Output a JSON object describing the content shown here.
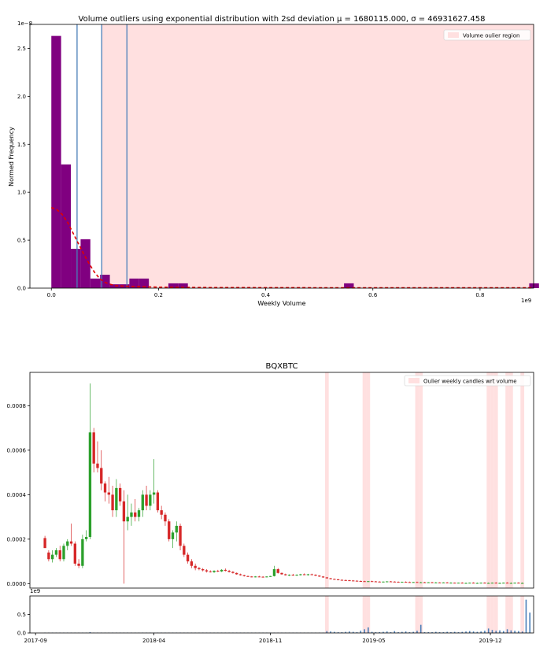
{
  "chart_data": [
    {
      "type": "bar",
      "title": "Volume outliers using exponential distribution with 2sd deviation μ = 1680115.000,  σ = 46931627.458",
      "xlabel": "Weekly Volume",
      "ylabel": "Normed Frequency",
      "x_offset_label": "1e9",
      "y_offset_label": "1e−8",
      "xlim": [
        -0.04,
        0.9
      ],
      "ylim": [
        0,
        2.75
      ],
      "x_ticks": [
        0.0,
        0.2,
        0.4,
        0.6,
        0.8
      ],
      "x_tick_labels": [
        "0.0",
        "0.2",
        "0.4",
        "0.6",
        "0.8"
      ],
      "y_ticks": [
        0.0,
        0.5,
        1.0,
        1.5,
        2.0,
        2.5
      ],
      "y_tick_labels": [
        "0.0",
        "0.5",
        "1.0",
        "1.5",
        "2.0",
        "2.5"
      ],
      "grid": false,
      "legend_position": "top-right",
      "legend_entries": [
        "Volume oulier region"
      ],
      "outlier_region": [
        0.094,
        0.9
      ],
      "vertical_lines": [
        0.048,
        0.094,
        0.141
      ],
      "bin_width": 0.0182,
      "bins": [
        {
          "x": 0.0,
          "value": 2.63
        },
        {
          "x": 0.0182,
          "value": 1.29
        },
        {
          "x": 0.0364,
          "value": 0.41
        },
        {
          "x": 0.0546,
          "value": 0.51
        },
        {
          "x": 0.0728,
          "value": 0.1
        },
        {
          "x": 0.091,
          "value": 0.14
        },
        {
          "x": 0.1092,
          "value": 0.04
        },
        {
          "x": 0.1274,
          "value": 0.04
        },
        {
          "x": 0.1456,
          "value": 0.1
        },
        {
          "x": 0.1638,
          "value": 0.1
        },
        {
          "x": 0.2184,
          "value": 0.05
        },
        {
          "x": 0.2366,
          "value": 0.05
        },
        {
          "x": 0.5462,
          "value": 0.05
        },
        {
          "x": 0.8918,
          "value": 0.05
        }
      ],
      "fit_curve": [
        [
          0.0,
          0.84
        ],
        [
          0.01,
          0.82
        ],
        [
          0.02,
          0.77
        ],
        [
          0.03,
          0.69
        ],
        [
          0.04,
          0.58
        ],
        [
          0.05,
          0.47
        ],
        [
          0.06,
          0.36
        ],
        [
          0.07,
          0.26
        ],
        [
          0.08,
          0.17
        ],
        [
          0.09,
          0.1
        ],
        [
          0.1,
          0.06
        ],
        [
          0.11,
          0.04
        ],
        [
          0.12,
          0.025
        ],
        [
          0.14,
          0.02
        ],
        [
          0.2,
          0.01
        ],
        [
          0.3,
          0.006
        ],
        [
          0.5,
          0.004
        ],
        [
          0.9,
          0.004
        ]
      ]
    },
    {
      "type": "candlestick",
      "title": "BQXBTC",
      "legend_position": "top-right",
      "legend_entries": [
        "Oulier weekly candles wrt volume"
      ],
      "ylim": [
        -2e-05,
        0.00095
      ],
      "y_ticks": [
        0.0,
        0.0002,
        0.0004,
        0.0006,
        0.0008
      ],
      "y_tick_labels": [
        "0.0000",
        "0.0002",
        "0.0004",
        "0.0006",
        "0.0008"
      ],
      "x_tick_labels": [
        "2017-09",
        "2018-04",
        "2018-11",
        "2019-05",
        "2019-12"
      ],
      "x_tick_index": [
        -2.5,
        29,
        60,
        87.5,
        118.5
      ],
      "volume_ylim": [
        0,
        1.0
      ],
      "volume_y_ticks": [
        0.0,
        0.5
      ],
      "volume_y_tick_labels": [
        "0.0",
        "0.5"
      ],
      "volume_offset_label": "1e9",
      "outlier_candles": [
        75,
        85,
        86,
        99,
        100,
        118,
        119,
        120,
        123,
        124,
        127
      ],
      "candles": [
        [
          0.000205,
          0.000215,
          0.00016,
          0.00016
        ],
        [
          0.00014,
          0.00015,
          0.0001,
          0.00011
        ],
        [
          0.00011,
          0.00015,
          9.5e-05,
          0.00013
        ],
        [
          0.00013,
          0.00016,
          0.00012,
          0.00015
        ],
        [
          0.00015,
          0.00017,
          0.0001,
          0.00011
        ],
        [
          0.00011,
          0.00018,
          0.0001,
          0.00017
        ],
        [
          0.00017,
          0.0002,
          0.00015,
          0.00019
        ],
        [
          0.00019,
          0.00027,
          0.00017,
          0.00018
        ],
        [
          0.00018,
          0.00019,
          8e-05,
          9e-05
        ],
        [
          9e-05,
          0.00011,
          7e-05,
          8e-05
        ],
        [
          8e-05,
          0.00022,
          7e-05,
          0.0002
        ],
        [
          0.0002,
          0.00024,
          0.00019,
          0.00021
        ],
        [
          0.00021,
          0.0009,
          0.0002,
          0.00068
        ],
        [
          0.00068,
          0.0007,
          0.0005,
          0.00054
        ],
        [
          0.00054,
          0.00064,
          0.0005,
          0.00052
        ],
        [
          0.00052,
          0.0006,
          0.00042,
          0.00045
        ],
        [
          0.00045,
          0.00046,
          0.00037,
          0.00041
        ],
        [
          0.00041,
          0.00048,
          0.00036,
          0.0004
        ],
        [
          0.0004,
          0.00044,
          0.0003,
          0.00033
        ],
        [
          0.00033,
          0.00047,
          0.0003,
          0.00043
        ],
        [
          0.00043,
          0.00045,
          0.00035,
          0.00037
        ],
        [
          0.00037,
          0.00042,
          0.0,
          0.00028
        ],
        [
          0.00028,
          0.0004,
          0.00024,
          0.0003
        ],
        [
          0.0003,
          0.00036,
          0.00026,
          0.00032
        ],
        [
          0.00032,
          0.00038,
          0.00028,
          0.0003
        ],
        [
          0.0003,
          0.00034,
          0.00028,
          0.00033
        ],
        [
          0.00033,
          0.00042,
          0.0003,
          0.0004
        ],
        [
          0.0004,
          0.00044,
          0.00033,
          0.00035
        ],
        [
          0.00035,
          0.00042,
          0.00033,
          0.0004
        ],
        [
          0.0004,
          0.00056,
          0.00036,
          0.00041
        ],
        [
          0.00041,
          0.00042,
          0.00032,
          0.00033
        ],
        [
          0.00033,
          0.00035,
          0.00029,
          0.00031
        ],
        [
          0.00031,
          0.00032,
          0.00026,
          0.00028
        ],
        [
          0.00028,
          0.00029,
          0.00019,
          0.0002
        ],
        [
          0.0002,
          0.00024,
          0.00016,
          0.00023
        ],
        [
          0.00023,
          0.00028,
          0.00019,
          0.00026
        ],
        [
          0.00026,
          0.00027,
          0.00015,
          0.00017
        ],
        [
          0.00017,
          0.00018,
          0.00012,
          0.00013
        ],
        [
          0.00013,
          0.00014,
          9e-05,
          0.0001
        ],
        [
          0.0001,
          0.00011,
          7e-05,
          8e-05
        ],
        [
          8e-05,
          9e-05,
          6e-05,
          7e-05
        ],
        [
          7e-05,
          7.5e-05,
          6e-05,
          6.5e-05
        ],
        [
          6.5e-05,
          7e-05,
          5.5e-05,
          6e-05
        ],
        [
          6e-05,
          6.5e-05,
          5e-05,
          5.5e-05
        ],
        [
          5.5e-05,
          6e-05,
          5e-05,
          5.2e-05
        ],
        [
          5.2e-05,
          6e-05,
          4.8e-05,
          5.8e-05
        ],
        [
          5.8e-05,
          6.2e-05,
          5.2e-05,
          5.5e-05
        ],
        [
          5.5e-05,
          6.5e-05,
          5.2e-05,
          6.2e-05
        ],
        [
          6.2e-05,
          6.8e-05,
          5.5e-05,
          5.8e-05
        ],
        [
          5.8e-05,
          6.2e-05,
          5e-05,
          5.3e-05
        ],
        [
          5.3e-05,
          5.6e-05,
          4.5e-05,
          4.8e-05
        ],
        [
          4.8e-05,
          5e-05,
          4e-05,
          4.2e-05
        ],
        [
          4.2e-05,
          4.5e-05,
          3.6e-05,
          3.8e-05
        ],
        [
          3.8e-05,
          4e-05,
          3.2e-05,
          3.4e-05
        ],
        [
          3.4e-05,
          3.6e-05,
          3e-05,
          3.2e-05
        ],
        [
          3.2e-05,
          3.4e-05,
          2.8e-05,
          3e-05
        ],
        [
          3e-05,
          3.4e-05,
          2.8e-05,
          3.2e-05
        ],
        [
          3.2e-05,
          3.5e-05,
          2.9e-05,
          3.1e-05
        ],
        [
          3.1e-05,
          3.3e-05,
          2.8e-05,
          3e-05
        ],
        [
          3e-05,
          3.3e-05,
          2.8e-05,
          3.2e-05
        ],
        [
          3.2e-05,
          3.5e-05,
          3e-05,
          3.4e-05
        ],
        [
          3.4e-05,
          8e-05,
          3.2e-05,
          6.5e-05
        ],
        [
          6.5e-05,
          7e-05,
          4.5e-05,
          4.8e-05
        ],
        [
          4.8e-05,
          5e-05,
          4e-05,
          4.2e-05
        ],
        [
          4.2e-05,
          4.5e-05,
          3.6e-05,
          3.8e-05
        ],
        [
          3.8e-05,
          4.2e-05,
          3.4e-05,
          4e-05
        ],
        [
          4e-05,
          4.4e-05,
          3.6e-05,
          3.8e-05
        ],
        [
          3.8e-05,
          4.2e-05,
          3.5e-05,
          4e-05
        ],
        [
          4e-05,
          4.4e-05,
          3.6e-05,
          4.2e-05
        ],
        [
          4.2e-05,
          4.6e-05,
          3.8e-05,
          4e-05
        ],
        [
          4e-05,
          4.4e-05,
          3.6e-05,
          4.2e-05
        ],
        [
          4.2e-05,
          4.5e-05,
          3.8e-05,
          4e-05
        ],
        [
          4e-05,
          4.2e-05,
          3.4e-05,
          3.6e-05
        ],
        [
          3.6e-05,
          3.8e-05,
          3e-05,
          3.2e-05
        ],
        [
          3.2e-05,
          3.4e-05,
          2.6e-05,
          2.8e-05
        ],
        [
          2.8e-05,
          3e-05,
          2.2e-05,
          2.4e-05
        ],
        [
          2.4e-05,
          2.6e-05,
          1.9e-05,
          2.1e-05
        ],
        [
          2.1e-05,
          2.3e-05,
          1.7e-05,
          1.9e-05
        ],
        [
          1.9e-05,
          2.1e-05,
          1.5e-05,
          1.7e-05
        ],
        [
          1.7e-05,
          1.9e-05,
          1.4e-05,
          1.6e-05
        ],
        [
          1.6e-05,
          1.8e-05,
          1.3e-05,
          1.5e-05
        ],
        [
          1.5e-05,
          1.7e-05,
          1.2e-05,
          1.4e-05
        ],
        [
          1.4e-05,
          1.6e-05,
          1.2e-05,
          1.3e-05
        ],
        [
          1.3e-05,
          1.5e-05,
          1.1e-05,
          1.2e-05
        ],
        [
          1.2e-05,
          1.4e-05,
          1e-05,
          1.1e-05
        ],
        [
          1.1e-05,
          1.3e-05,
          9e-06,
          1e-05
        ],
        [
          1e-05,
          1.2e-05,
          8e-06,
          1.1e-05
        ],
        [
          1.1e-05,
          1.3e-05,
          9e-06,
          1e-05
        ],
        [
          1e-05,
          1.2e-05,
          8e-06,
          9e-06
        ],
        [
          9e-06,
          1.1e-05,
          7e-06,
          8e-06
        ],
        [
          8e-06,
          1e-05,
          7e-06,
          9e-06
        ],
        [
          9e-06,
          1.1e-05,
          8e-06,
          1e-05
        ],
        [
          1e-05,
          1.2e-05,
          8e-06,
          9e-06
        ],
        [
          9e-06,
          1.1e-05,
          7e-06,
          8e-06
        ],
        [
          8e-06,
          1e-05,
          6e-06,
          7e-06
        ],
        [
          7e-06,
          9e-06,
          6e-06,
          8e-06
        ],
        [
          8e-06,
          1e-05,
          6e-06,
          7e-06
        ],
        [
          7e-06,
          9e-06,
          5e-06,
          6e-06
        ],
        [
          6e-06,
          8e-06,
          5e-06,
          7e-06
        ],
        [
          7e-06,
          9e-06,
          5e-06,
          6e-06
        ],
        [
          6e-06,
          8e-06,
          5e-06,
          6e-06
        ],
        [
          6e-06,
          8e-06,
          4e-06,
          5e-06
        ],
        [
          5e-06,
          7e-06,
          4e-06,
          6e-06
        ],
        [
          6e-06,
          8e-06,
          4e-06,
          5e-06
        ],
        [
          5e-06,
          7e-06,
          4e-06,
          5e-06
        ],
        [
          5e-06,
          6e-06,
          3e-06,
          4e-06
        ],
        [
          4e-06,
          6e-06,
          3e-06,
          5e-06
        ],
        [
          5e-06,
          7e-06,
          3e-06,
          4e-06
        ],
        [
          4e-06,
          6e-06,
          3e-06,
          4e-06
        ],
        [
          4e-06,
          5e-06,
          2e-06,
          3e-06
        ],
        [
          3e-06,
          5e-06,
          2e-06,
          4e-06
        ],
        [
          4e-06,
          6e-06,
          2e-06,
          3e-06
        ],
        [
          3e-06,
          5e-06,
          2e-06,
          3e-06
        ],
        [
          3e-06,
          5e-06,
          2e-06,
          4e-06
        ],
        [
          4e-06,
          6e-06,
          2e-06,
          3e-06
        ],
        [
          3e-06,
          5e-06,
          2e-06,
          3e-06
        ],
        [
          3e-06,
          5e-06,
          2e-06,
          4e-06
        ],
        [
          4e-06,
          6e-06,
          2e-06,
          3e-06
        ],
        [
          3e-06,
          5e-06,
          2e-06,
          3e-06
        ],
        [
          3e-06,
          5e-06,
          2e-06,
          4e-06
        ],
        [
          4e-06,
          6e-06,
          2e-06,
          3e-06
        ],
        [
          3e-06,
          5e-06,
          2e-06,
          3e-06
        ],
        [
          3e-06,
          5e-06,
          2e-06,
          4e-06
        ],
        [
          4e-06,
          6e-06,
          2e-06,
          3e-06
        ],
        [
          3e-06,
          5e-06,
          2e-06,
          3e-06
        ],
        [
          3e-06,
          5e-06,
          2e-06,
          4e-06
        ],
        [
          4e-06,
          6e-06,
          2e-06,
          3e-06
        ],
        [
          3e-06,
          5e-06,
          2e-06,
          3e-06
        ]
      ],
      "volumes": [
        0.01,
        0.01,
        0.01,
        0.01,
        0.01,
        0.01,
        0.01,
        0.01,
        0.01,
        0.01,
        0.01,
        0.01,
        0.02,
        0.01,
        0.01,
        0.01,
        0.01,
        0.01,
        0.01,
        0.01,
        0.01,
        0.01,
        0.01,
        0.01,
        0.01,
        0.01,
        0.01,
        0.01,
        0.01,
        0.01,
        0.01,
        0.01,
        0.01,
        0.01,
        0.01,
        0.01,
        0.01,
        0.01,
        0.01,
        0.01,
        0.01,
        0.01,
        0.01,
        0.01,
        0.01,
        0.01,
        0.01,
        0.01,
        0.01,
        0.01,
        0.01,
        0.01,
        0.01,
        0.01,
        0.01,
        0.01,
        0.01,
        0.01,
        0.01,
        0.01,
        0.01,
        0.01,
        0.01,
        0.01,
        0.01,
        0.01,
        0.01,
        0.01,
        0.01,
        0.01,
        0.01,
        0.01,
        0.01,
        0.01,
        0.01,
        0.05,
        0.04,
        0.03,
        0.02,
        0.02,
        0.03,
        0.04,
        0.03,
        0.02,
        0.06,
        0.1,
        0.15,
        0.03,
        0.02,
        0.02,
        0.03,
        0.04,
        0.02,
        0.05,
        0.02,
        0.03,
        0.04,
        0.02,
        0.03,
        0.06,
        0.22,
        0.02,
        0.02,
        0.02,
        0.03,
        0.02,
        0.02,
        0.03,
        0.02,
        0.03,
        0.02,
        0.03,
        0.04,
        0.05,
        0.04,
        0.03,
        0.04,
        0.06,
        0.12,
        0.08,
        0.06,
        0.07,
        0.05,
        0.1,
        0.07,
        0.06,
        0.05,
        0.04,
        0.9,
        0.55
      ]
    }
  ]
}
